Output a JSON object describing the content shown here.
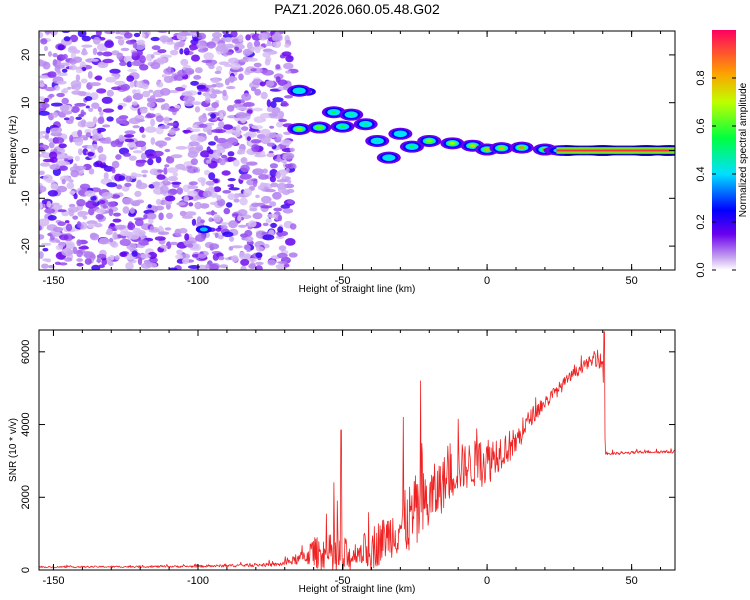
{
  "title": "PAZ1.2026.060.05.48.G02",
  "colors": {
    "snr_line": "#ee2222",
    "frame": "#000000",
    "background": "#ffffff"
  },
  "chart_data": [
    {
      "type": "heatmap",
      "name": "spectrogram",
      "xlabel": "Height of straight line (km)",
      "ylabel": "Frequency (Hz)",
      "xlim": [
        -155,
        65
      ],
      "ylim": [
        -25,
        25
      ],
      "x_ticks": [
        -150,
        -100,
        -50,
        0,
        50
      ],
      "y_ticks": [
        -20,
        -10,
        0,
        10,
        20
      ],
      "x_tick_labels": [
        "-150",
        "-100",
        "-50",
        "0",
        "50"
      ],
      "y_tick_labels": [
        "-20",
        "-10",
        "0",
        "10",
        "20"
      ],
      "noise_region_x": [
        -155,
        -67
      ],
      "signal_track": [
        {
          "x": -65,
          "y": 12.5,
          "amp": 0.35
        },
        {
          "x": -65,
          "y": 4.5,
          "amp": 0.55
        },
        {
          "x": -58,
          "y": 4.8,
          "amp": 0.5
        },
        {
          "x": -53,
          "y": 8,
          "amp": 0.45
        },
        {
          "x": -50,
          "y": 5,
          "amp": 0.45
        },
        {
          "x": -47,
          "y": 7.5,
          "amp": 0.4
        },
        {
          "x": -42,
          "y": 5.5,
          "amp": 0.4
        },
        {
          "x": -38,
          "y": 2,
          "amp": 0.35
        },
        {
          "x": -34,
          "y": -1.5,
          "amp": 0.35
        },
        {
          "x": -30,
          "y": 3.5,
          "amp": 0.3
        },
        {
          "x": -26,
          "y": 0.8,
          "amp": 0.45
        },
        {
          "x": -20,
          "y": 2,
          "amp": 0.55
        },
        {
          "x": -12,
          "y": 1.5,
          "amp": 0.6
        },
        {
          "x": -5,
          "y": 1,
          "amp": 0.65
        },
        {
          "x": 0,
          "y": 0.2,
          "amp": 0.7
        },
        {
          "x": 5,
          "y": 0.5,
          "amp": 0.7
        },
        {
          "x": 12,
          "y": 0.6,
          "amp": 0.75
        },
        {
          "x": 20,
          "y": 0.2,
          "amp": 0.8
        },
        {
          "x": 27,
          "y": 0,
          "amp": 0.85
        },
        {
          "x": 40,
          "y": 0,
          "amp": 0.9
        },
        {
          "x": 55,
          "y": 0,
          "amp": 0.95
        },
        {
          "x": 63,
          "y": 0,
          "amp": 0.95
        }
      ],
      "colorbar": {
        "label": "Normalized spectral amplitude",
        "range": [
          0,
          1
        ],
        "ticks": [
          0.0,
          0.2,
          0.4,
          0.6,
          0.8
        ],
        "tick_labels": [
          "0.0",
          "0.2",
          "0.4",
          "0.6",
          "0.8"
        ],
        "colormap": [
          "#ffffff",
          "#c9a8f0",
          "#6a00ee",
          "#0000ff",
          "#00e0ff",
          "#00ff40",
          "#c0ff00",
          "#ffa000",
          "#ff0060"
        ]
      }
    },
    {
      "type": "line",
      "name": "snr",
      "xlabel": "Height of straight line (km)",
      "ylabel": "SNR (10 * v/v)",
      "xlim": [
        -155,
        65
      ],
      "ylim": [
        0,
        6600
      ],
      "x_ticks": [
        -150,
        -100,
        -50,
        0,
        50
      ],
      "y_ticks": [
        0,
        2000,
        4000,
        6000
      ],
      "x_tick_labels": [
        "-150",
        "-100",
        "-50",
        "0",
        "50"
      ],
      "y_tick_labels": [
        "0",
        "2000",
        "4000",
        "6000"
      ],
      "envelope": {
        "x": [
          -155,
          -100,
          -72,
          -65,
          -60,
          -55,
          -52,
          -48,
          -45,
          -40,
          -35,
          -30,
          -25,
          -20,
          -15,
          -10,
          -5,
          0,
          5,
          10,
          15,
          20,
          25,
          30,
          35,
          38,
          40,
          41,
          45,
          55,
          63
        ],
        "base": [
          80,
          100,
          150,
          300,
          500,
          400,
          350,
          300,
          500,
          600,
          900,
          1200,
          1500,
          1900,
          2400,
          2800,
          2900,
          3000,
          3300,
          3500,
          4200,
          4600,
          5000,
          5400,
          5700,
          5800,
          5700,
          3200,
          3200,
          3250,
          3250
        ],
        "spread": [
          40,
          60,
          100,
          300,
          800,
          1100,
          1600,
          1000,
          600,
          1300,
          1200,
          1600,
          2200,
          1800,
          1500,
          1300,
          1300,
          1400,
          1000,
          800,
          500,
          400,
          350,
          300,
          300,
          400,
          500,
          100,
          80,
          80,
          80
        ]
      },
      "spikes": [
        {
          "x": -50.5,
          "y": 3850
        },
        {
          "x": -23,
          "y": 5200
        },
        {
          "x": 40.5,
          "y": 6550
        },
        {
          "x": -29,
          "y": 4200
        },
        {
          "x": -10,
          "y": 4150
        }
      ],
      "step_drop_x": 41
    }
  ]
}
